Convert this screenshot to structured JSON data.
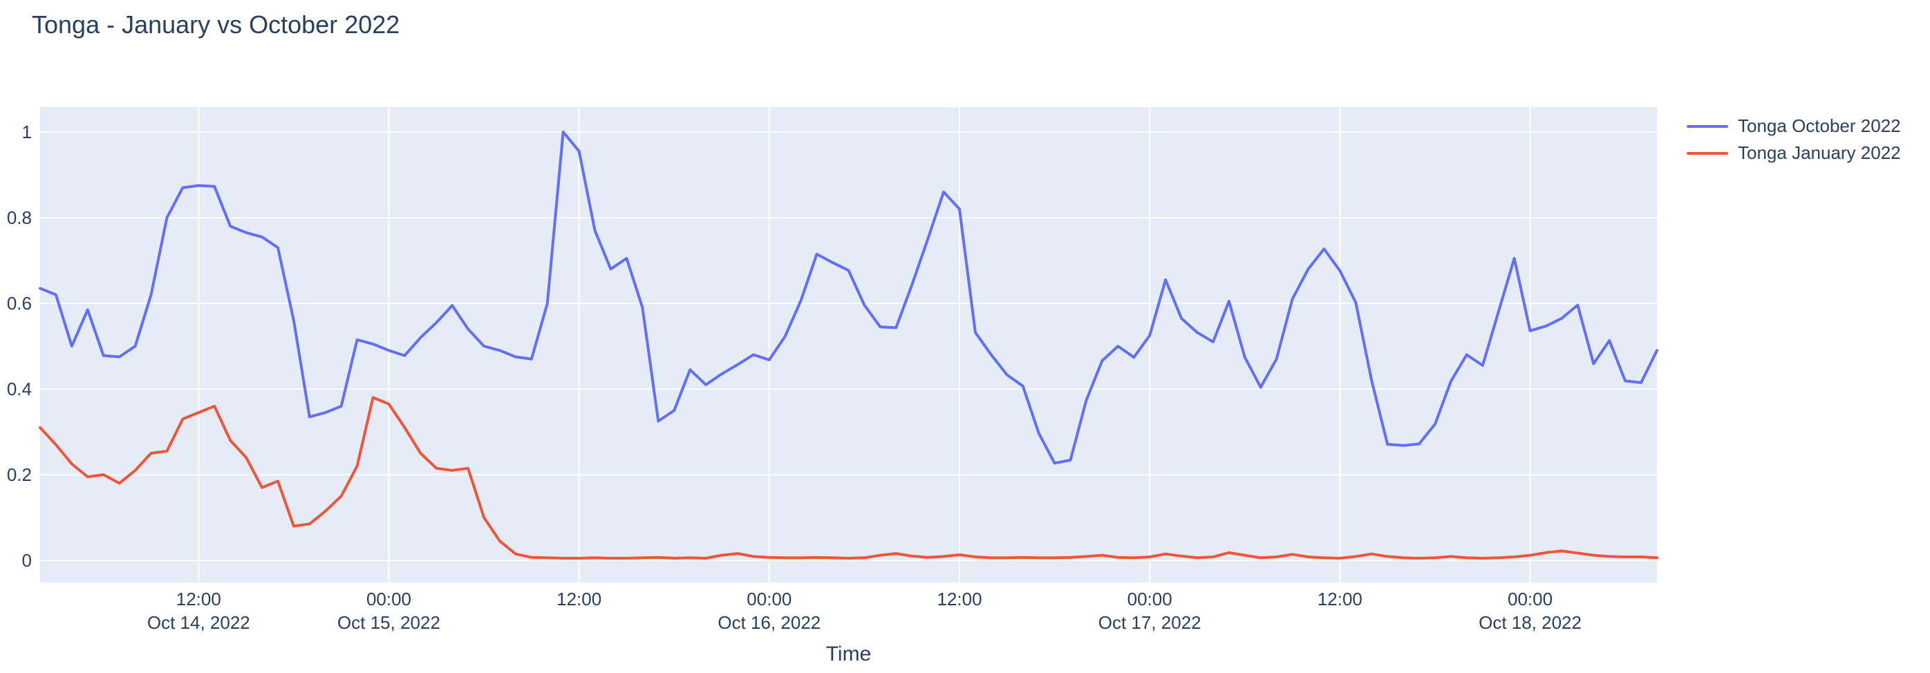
{
  "title": {
    "text": "Tonga - January vs October 2022"
  },
  "chart_data": {
    "type": "line",
    "title": "Tonga - January vs October 2022",
    "xlabel": "Time",
    "ylabel": "",
    "x_start": "2022-10-14 02:00",
    "x_step_hours": 1,
    "n_points": 103,
    "x_range_hours": [
      0,
      102
    ],
    "y_range": [
      -0.052,
      1.058
    ],
    "grid": "on",
    "legend_position": "right",
    "colors": {
      "plot_background": "#e5ecf6",
      "grid": "#ffffff",
      "text": "#2a3f5f",
      "page_background": "#ffffff",
      "october_line": "#636efa",
      "january_line": "#ef553b"
    },
    "y_axis_ticks": [
      {
        "value": 0,
        "label": "0"
      },
      {
        "value": 0.2,
        "label": "0.2"
      },
      {
        "value": 0.4,
        "label": "0.4"
      },
      {
        "value": 0.6,
        "label": "0.6"
      },
      {
        "value": 0.8,
        "label": "0.8"
      },
      {
        "value": 1,
        "label": "1"
      }
    ],
    "x_axis_ticks": [
      {
        "offset_hours": 10,
        "time": "12:00",
        "date": "Oct 14, 2022"
      },
      {
        "offset_hours": 22,
        "time": "00:00",
        "date": "Oct 15, 2022"
      },
      {
        "offset_hours": 34,
        "time": "12:00",
        "date": ""
      },
      {
        "offset_hours": 46,
        "time": "00:00",
        "date": "Oct 16, 2022"
      },
      {
        "offset_hours": 58,
        "time": "12:00",
        "date": ""
      },
      {
        "offset_hours": 70,
        "time": "00:00",
        "date": "Oct 17, 2022"
      },
      {
        "offset_hours": 82,
        "time": "12:00",
        "date": ""
      },
      {
        "offset_hours": 94,
        "time": "00:00",
        "date": "Oct 18, 2022"
      }
    ],
    "series": [
      {
        "name": "Tonga October 2022",
        "color": "#636efa",
        "values": [
          0.635,
          0.62,
          0.5,
          0.585,
          0.478,
          0.475,
          0.5,
          0.62,
          0.8,
          0.87,
          0.875,
          0.873,
          0.78,
          0.765,
          0.755,
          0.73,
          0.56,
          0.335,
          0.345,
          0.36,
          0.515,
          0.505,
          0.49,
          0.478,
          0.52,
          0.555,
          0.595,
          0.54,
          0.5,
          0.49,
          0.475,
          0.47,
          0.6,
          1.0,
          0.955,
          0.77,
          0.68,
          0.705,
          0.59,
          0.325,
          0.35,
          0.445,
          0.41,
          0.435,
          0.457,
          0.48,
          0.468,
          0.523,
          0.607,
          0.715,
          0.695,
          0.677,
          0.596,
          0.545,
          0.543,
          0.643,
          0.75,
          0.86,
          0.82,
          0.532,
          0.48,
          0.433,
          0.407,
          0.297,
          0.227,
          0.234,
          0.374,
          0.466,
          0.5,
          0.474,
          0.525,
          0.655,
          0.565,
          0.532,
          0.51,
          0.605,
          0.474,
          0.404,
          0.47,
          0.61,
          0.68,
          0.727,
          0.676,
          0.602,
          0.42,
          0.271,
          0.268,
          0.272,
          0.318,
          0.418,
          0.48,
          0.455,
          0.58,
          0.705,
          0.536,
          0.547,
          0.565,
          0.596,
          0.459,
          0.513,
          0.419,
          0.415,
          0.49
        ]
      },
      {
        "name": "Tonga January 2022",
        "color": "#ef553b",
        "values": [
          0.31,
          0.27,
          0.225,
          0.195,
          0.2,
          0.18,
          0.21,
          0.25,
          0.255,
          0.33,
          0.345,
          0.36,
          0.28,
          0.24,
          0.17,
          0.185,
          0.08,
          0.085,
          0.115,
          0.15,
          0.22,
          0.38,
          0.365,
          0.31,
          0.25,
          0.215,
          0.21,
          0.215,
          0.1,
          0.045,
          0.015,
          0.007,
          0.006,
          0.005,
          0.005,
          0.006,
          0.005,
          0.005,
          0.006,
          0.007,
          0.005,
          0.006,
          0.005,
          0.012,
          0.016,
          0.009,
          0.007,
          0.006,
          0.006,
          0.007,
          0.006,
          0.005,
          0.006,
          0.012,
          0.016,
          0.01,
          0.007,
          0.009,
          0.013,
          0.008,
          0.006,
          0.006,
          0.007,
          0.006,
          0.006,
          0.007,
          0.009,
          0.012,
          0.007,
          0.006,
          0.008,
          0.015,
          0.01,
          0.006,
          0.008,
          0.018,
          0.012,
          0.006,
          0.008,
          0.014,
          0.008,
          0.006,
          0.005,
          0.009,
          0.015,
          0.009,
          0.006,
          0.005,
          0.006,
          0.009,
          0.006,
          0.005,
          0.006,
          0.008,
          0.012,
          0.018,
          0.022,
          0.017,
          0.012,
          0.009,
          0.008,
          0.008,
          0.006
        ]
      }
    ]
  }
}
